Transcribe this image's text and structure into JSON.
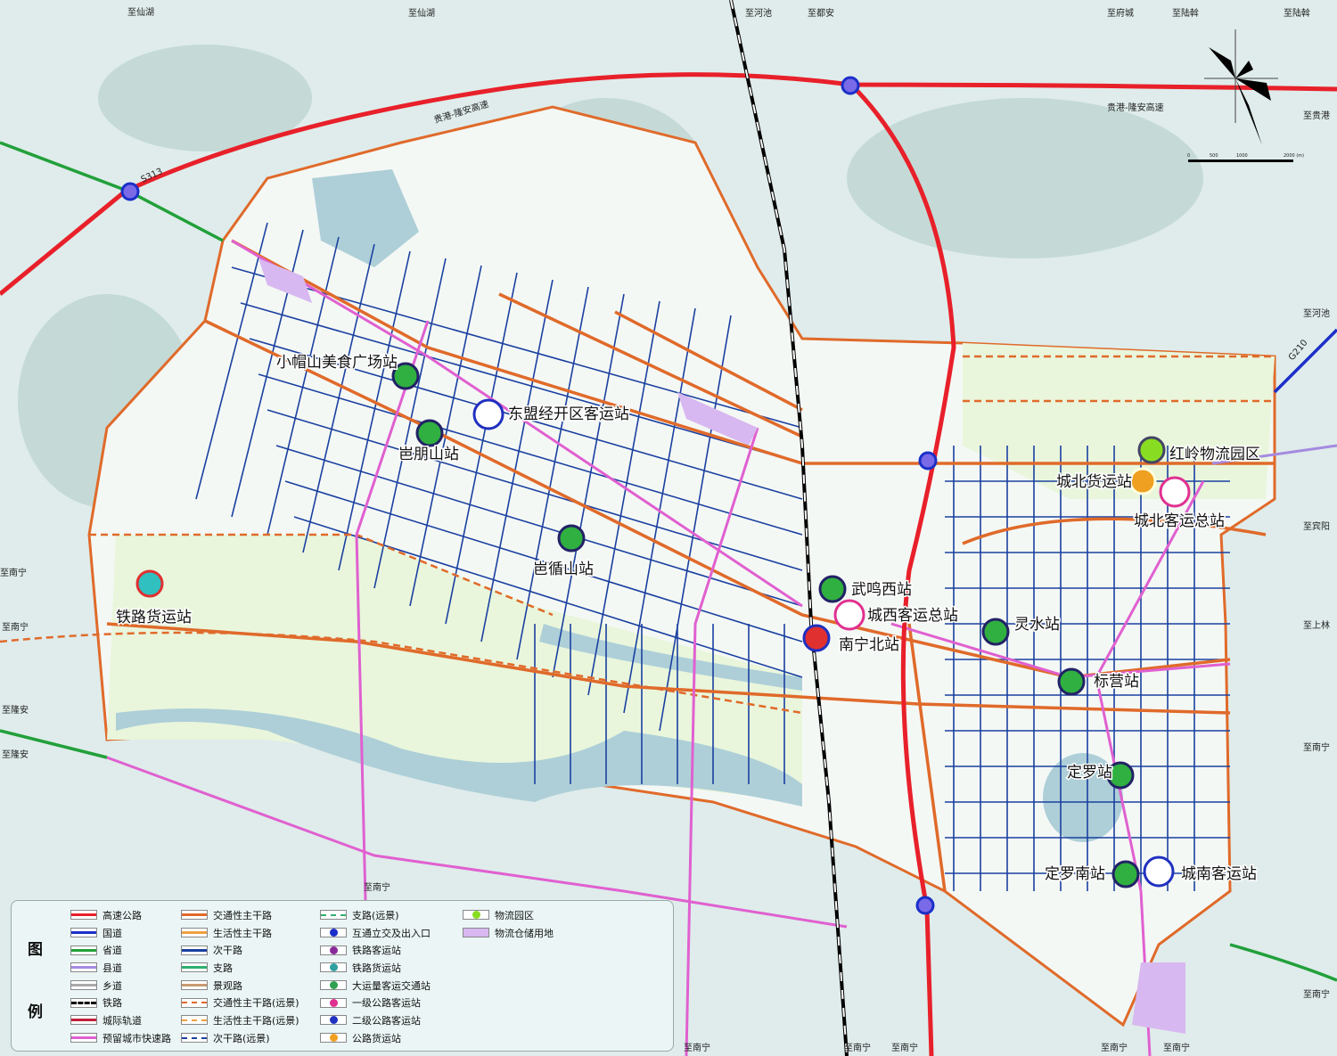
{
  "destinations": [
    "至仙湖",
    "至仙湖",
    "至河池",
    "至都安",
    "至府城",
    "至陆斡",
    "至陆斡",
    "至贵港",
    "至河池",
    "至宾阳",
    "至上林",
    "至南宁",
    "至南宁",
    "至南宁",
    "至南宁",
    "至南宁",
    "至南宁",
    "至南宁",
    "至南宁",
    "至南宁",
    "至南宁",
    "至隆安",
    "至隆安"
  ],
  "road_labels": {
    "expressway_w": "贵港-隆安高速",
    "expressway_e": "贵港-隆安高速",
    "s313": "S313",
    "g210": "G210"
  },
  "stations": [
    {
      "name": "小帽山美食广场站",
      "type": "mass-transit"
    },
    {
      "name": "岜朋山站",
      "type": "mass-transit"
    },
    {
      "name": "东盟经开区客运站",
      "type": "bus-2"
    },
    {
      "name": "岜循山站",
      "type": "mass-transit"
    },
    {
      "name": "铁路货运站",
      "type": "rail-freight"
    },
    {
      "name": "武鸣西站",
      "type": "mass-transit"
    },
    {
      "name": "城西客运总站",
      "type": "bus-1"
    },
    {
      "name": "南宁北站",
      "type": "rail-passenger"
    },
    {
      "name": "灵水站",
      "type": "mass-transit"
    },
    {
      "name": "标营站",
      "type": "mass-transit"
    },
    {
      "name": "定罗站",
      "type": "mass-transit"
    },
    {
      "name": "定罗南站",
      "type": "mass-transit"
    },
    {
      "name": "城南客运站",
      "type": "bus-2"
    },
    {
      "name": "红岭物流园区",
      "type": "logistics"
    },
    {
      "name": "城北货运站",
      "type": "road-freight"
    },
    {
      "name": "城北客运总站",
      "type": "bus-1"
    }
  ],
  "scale": {
    "ticks": [
      "0",
      "500",
      "1000",
      "2000 (m)"
    ]
  },
  "legend": {
    "title_top": "图",
    "title_bottom": "例",
    "col1": [
      {
        "label": "高速公路",
        "color": "#e8202a"
      },
      {
        "label": "国道",
        "color": "#1a2fc8"
      },
      {
        "label": "省道",
        "color": "#22a03a"
      },
      {
        "label": "县道",
        "color": "#a58ae0"
      },
      {
        "label": "乡道",
        "color": "#aaaaaa"
      },
      {
        "label": "铁路",
        "color": "#000000"
      },
      {
        "label": "城际轨道",
        "color": "#c0203a"
      },
      {
        "label": "预留城市快速路",
        "color": "#e060d0"
      }
    ],
    "col2": [
      {
        "label": "交通性主干路",
        "color": "#e06a2a"
      },
      {
        "label": "生活性主干路",
        "color": "#f0a040"
      },
      {
        "label": "次干路",
        "color": "#1a40a0"
      },
      {
        "label": "支路",
        "color": "#30b070"
      },
      {
        "label": "景观路",
        "color": "#c89a70"
      },
      {
        "label": "交通性主干路(远景)",
        "color": "#e06a2a"
      },
      {
        "label": "生活性主干路(远景)",
        "color": "#f0a040"
      },
      {
        "label": "次干路(远景)",
        "color": "#1a40a0"
      }
    ],
    "col3": [
      {
        "label": "支路(远景)",
        "color": "#30b070"
      },
      {
        "label": "互通立交及出入口",
        "color": "#1a2fc8"
      },
      {
        "label": "铁路客运站",
        "color": "#8a2a9a"
      },
      {
        "label": "铁路货运站",
        "color": "#30a0a0"
      },
      {
        "label": "大运量客运交通站",
        "color": "#30a050"
      },
      {
        "label": "一级公路客运站",
        "color": "#e03090"
      },
      {
        "label": "二级公路客运站",
        "color": "#2030c0"
      },
      {
        "label": "公路货运站",
        "color": "#f0a020"
      }
    ],
    "col4": [
      {
        "label": "物流园区",
        "color": "#88dd22"
      },
      {
        "label": "物流仓储用地",
        "color": "#d8b8f0"
      }
    ]
  }
}
